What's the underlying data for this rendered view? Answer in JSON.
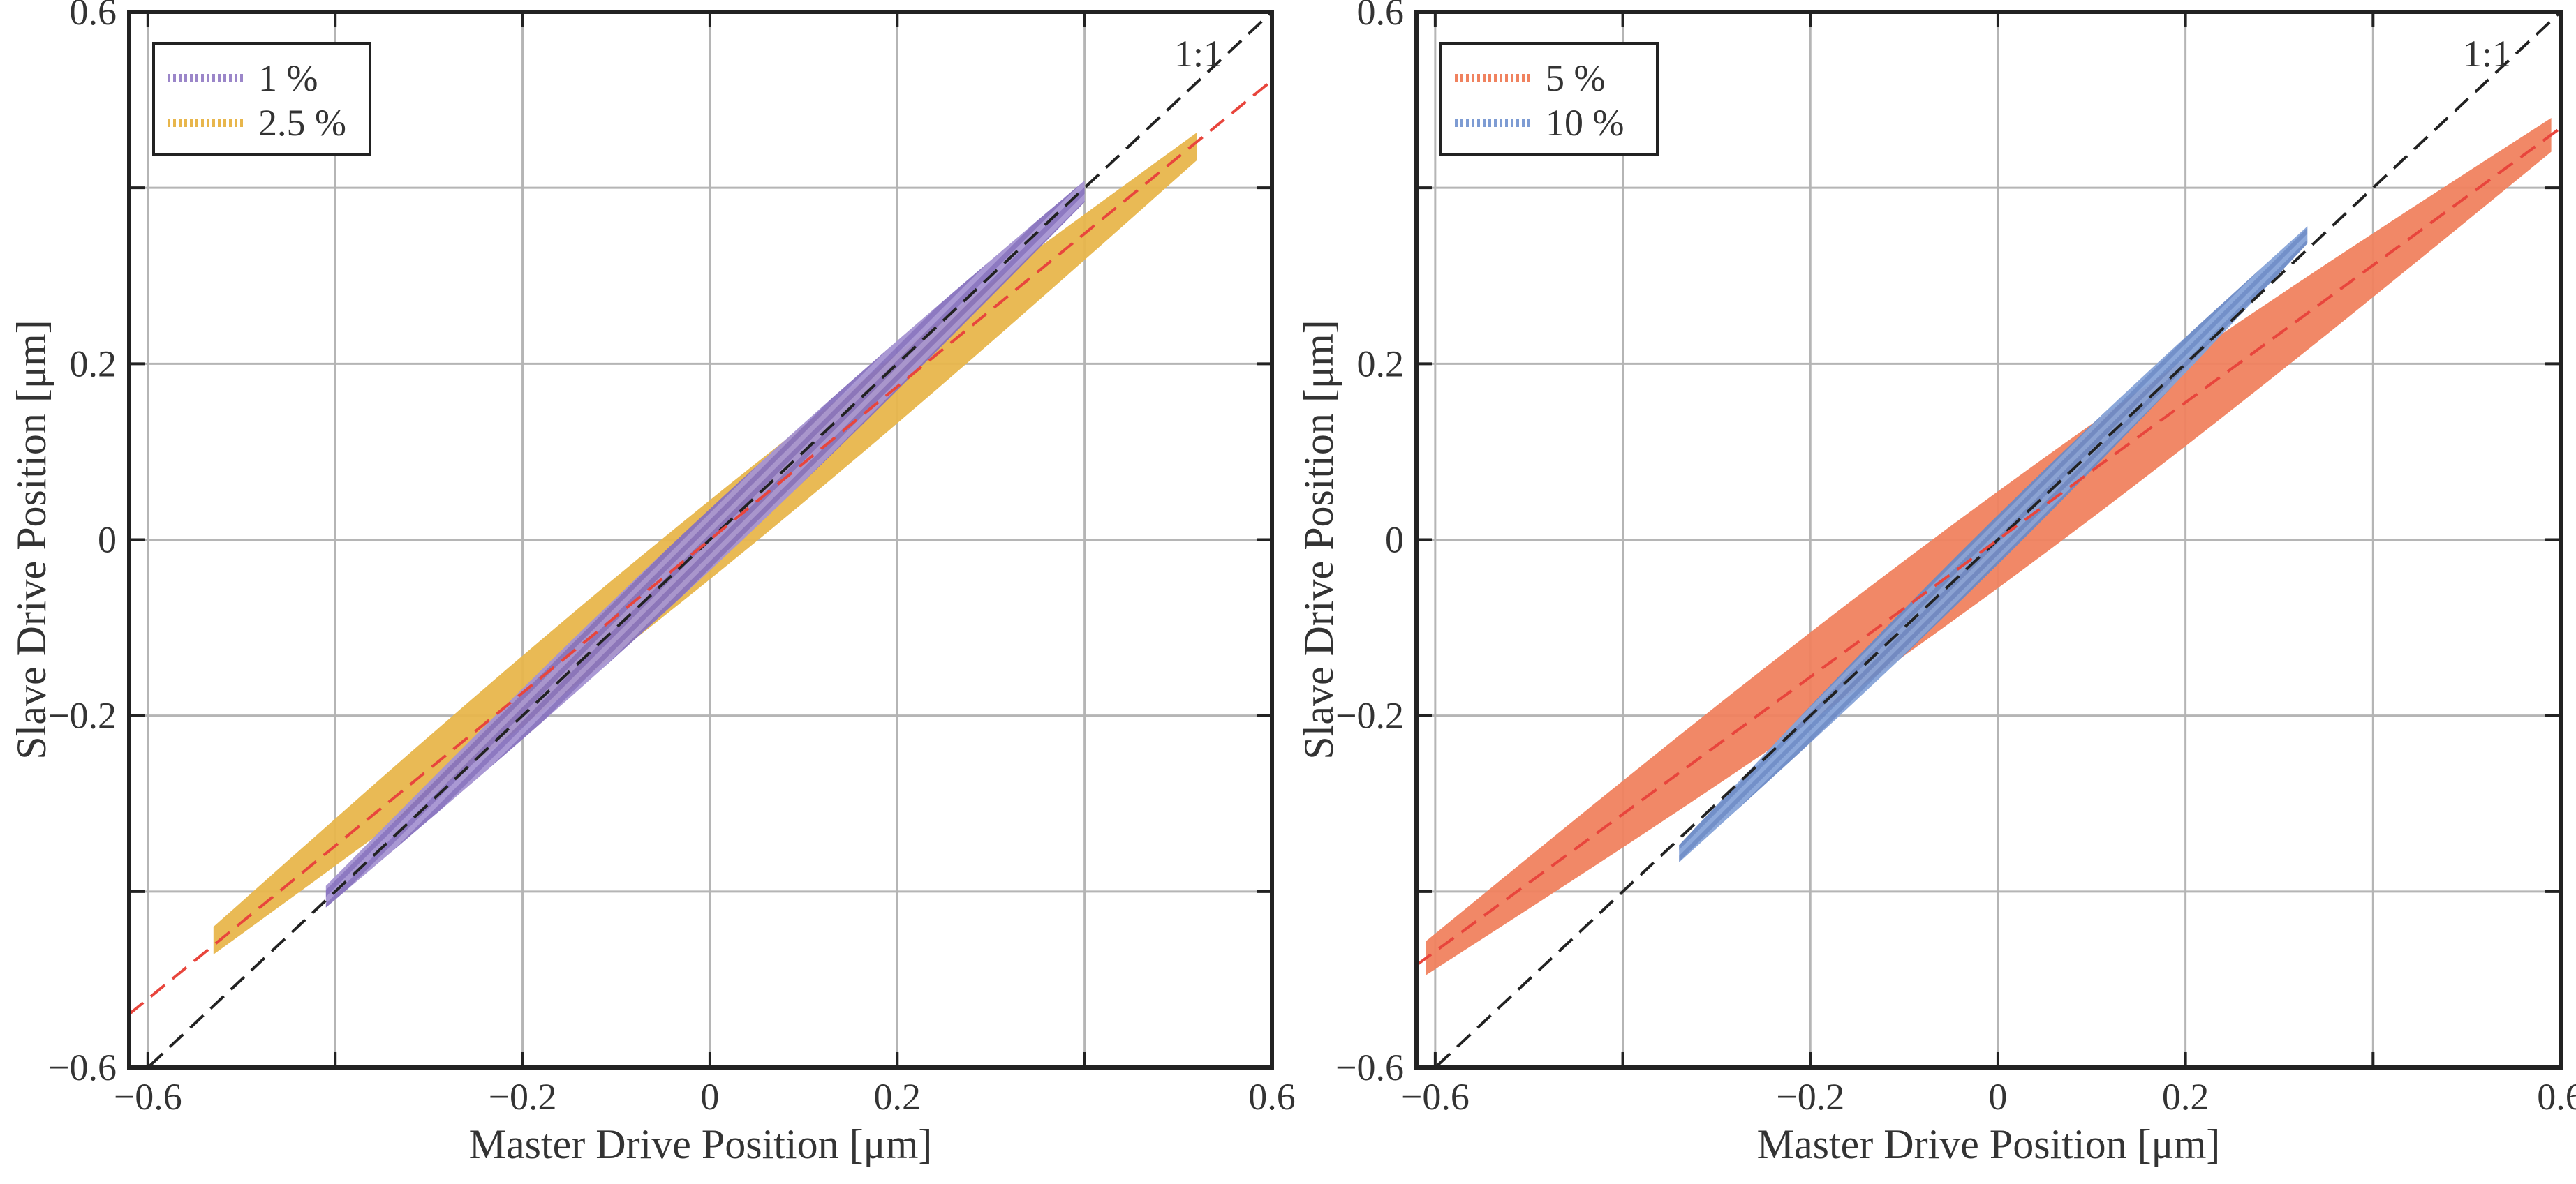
{
  "chart_data": [
    {
      "type": "scatter",
      "xlabel": "Master Drive Position [μm]",
      "ylabel": "Slave Drive Position [μm]",
      "xlim": [
        -0.62,
        0.6
      ],
      "ylim": [
        -0.6,
        0.6
      ],
      "xticks": [
        -0.6,
        -0.4,
        -0.2,
        0,
        0.2,
        0.4,
        0.6
      ],
      "xtick_labels": [
        "−0.6",
        "",
        "−0.2",
        "0",
        "0.2",
        "",
        "0.6"
      ],
      "yticks": [
        -0.6,
        -0.4,
        -0.2,
        0,
        0.2,
        0.4,
        0.6
      ],
      "ytick_labels": [
        "−0.6",
        "",
        "−0.2",
        "0",
        "0.2",
        "",
        "0.6"
      ],
      "grid": true,
      "legend_position": "top-left",
      "annotation": "1:1",
      "reference_line": {
        "label": "1:1",
        "slope": 1,
        "intercept": 0,
        "color": "#222222",
        "style": "dashed"
      },
      "series": [
        {
          "name": "2.5 %",
          "color": "#E8B64C",
          "style": "dotted-band",
          "x_range": [
            -0.53,
            0.52
          ],
          "slope": 0.86,
          "width": 0.045
        },
        {
          "name": "1 %",
          "color": "#9B86C9",
          "style": "dotted-band",
          "x_range": [
            -0.41,
            0.4
          ],
          "slope": 0.99,
          "width": 0.035
        },
        {
          "name": "fit",
          "color": "#E8453C",
          "style": "dashed",
          "slope": 0.87,
          "intercept": 0
        }
      ],
      "legend": [
        {
          "label": "1 %",
          "color": "#9B86C9"
        },
        {
          "label": "2.5 %",
          "color": "#E8B64C"
        }
      ]
    },
    {
      "type": "scatter",
      "xlabel": "Master Drive Position [μm]",
      "ylabel": "Slave Drive Position [μm]",
      "xlim": [
        -0.62,
        0.6
      ],
      "ylim": [
        -0.6,
        0.6
      ],
      "xticks": [
        -0.6,
        -0.4,
        -0.2,
        0,
        0.2,
        0.4,
        0.6
      ],
      "xtick_labels": [
        "−0.6",
        "",
        "−0.2",
        "0",
        "0.2",
        "",
        "0.6"
      ],
      "yticks": [
        -0.6,
        -0.4,
        -0.2,
        0,
        0.2,
        0.4,
        0.6
      ],
      "ytick_labels": [
        "−0.6",
        "",
        "−0.2",
        "0",
        "0.2",
        "",
        "0.6"
      ],
      "grid": true,
      "legend_position": "top-left",
      "annotation": "1:1",
      "reference_line": {
        "label": "1:1",
        "slope": 1,
        "intercept": 0,
        "color": "#222222",
        "style": "dashed"
      },
      "series": [
        {
          "name": "5 %",
          "color": "#F0825F",
          "style": "filled-band",
          "x_range": [
            -0.61,
            0.59
          ],
          "slope": 0.78,
          "width": 0.055
        },
        {
          "name": "10 %",
          "color": "#7E9CD3",
          "style": "dotted-band",
          "x_range": [
            -0.34,
            0.33
          ],
          "slope": 1.05,
          "width": 0.028
        },
        {
          "name": "fit",
          "color": "#E8453C",
          "style": "dashed",
          "slope": 0.78,
          "intercept": 0
        }
      ],
      "legend": [
        {
          "label": "5 %",
          "color": "#F0825F"
        },
        {
          "label": "10 %",
          "color": "#7E9CD3"
        }
      ]
    }
  ]
}
